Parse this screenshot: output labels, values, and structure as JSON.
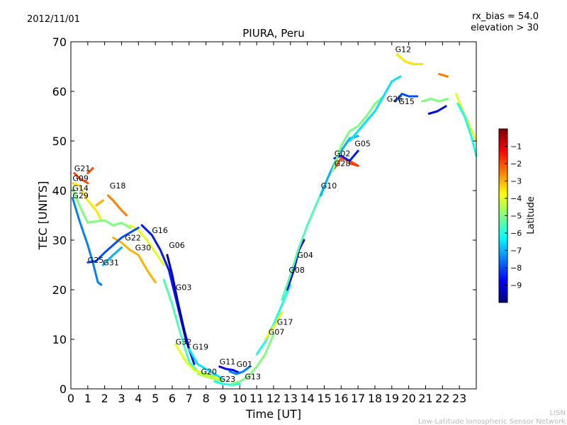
{
  "chart_data": {
    "type": "scatter",
    "date": "2012/11/01",
    "title": "PIURA, Peru",
    "annotations": [
      "rx_bias = 54.0",
      "elevation > 30"
    ],
    "xlabel": "Time [UT]",
    "ylabel": "TEC [UNITS]",
    "xlim": [
      0,
      24
    ],
    "ylim": [
      0,
      70
    ],
    "xticks": [
      "0",
      "1",
      "2",
      "3",
      "4",
      "5",
      "6",
      "7",
      "8",
      "9",
      "10",
      "11",
      "12",
      "13",
      "14",
      "15",
      "16",
      "17",
      "18",
      "19",
      "20",
      "21",
      "22",
      "23"
    ],
    "yticks": [
      "0",
      "10",
      "20",
      "30",
      "40",
      "50",
      "60",
      "70"
    ],
    "colorbar": {
      "label": "Latitude",
      "range": [
        -10,
        0
      ],
      "ticks": [
        "-1",
        "-2",
        "-3",
        "-4",
        "-5",
        "-6",
        "-7",
        "-8",
        "-9"
      ],
      "colors": [
        "#00007f",
        "#0000ff",
        "#007fff",
        "#00ffff",
        "#7fff7f",
        "#ffff00",
        "#ff7f00",
        "#ff0000",
        "#7f0000"
      ]
    },
    "watermark": [
      "LISN",
      "Low-Latitude Ionospheric Sensor Network"
    ],
    "series": [
      {
        "name": "G21",
        "label_at": [
          0.2,
          43.5
        ],
        "points": [
          [
            0.2,
            43.5
          ],
          [
            0.5,
            42.5
          ],
          [
            1.0,
            41.5
          ]
        ],
        "lat": -2.0
      },
      {
        "name": "G09",
        "label_at": [
          0.1,
          41.5
        ],
        "points": [
          [
            0.1,
            41.5
          ],
          [
            0.5,
            41.0
          ],
          [
            1.0,
            38.0
          ],
          [
            1.5,
            36.0
          ],
          [
            1.8,
            34.0
          ]
        ],
        "lat": -3.5
      },
      {
        "name": "G14",
        "label_at": [
          0.1,
          39.5
        ],
        "points": [
          [
            0.1,
            40.5
          ],
          [
            0.5,
            37.0
          ],
          [
            1.0,
            33.5
          ],
          [
            1.5,
            33.8
          ],
          [
            2.0,
            34.0
          ],
          [
            2.5,
            33.0
          ],
          [
            3.0,
            33.5
          ],
          [
            3.5,
            32.5
          ]
        ],
        "lat": -5.0
      },
      {
        "name": "G29",
        "label_at": [
          0.1,
          38.0
        ],
        "points": [
          [
            0.1,
            38.5
          ],
          [
            0.5,
            34.0
          ],
          [
            1.0,
            29.0
          ],
          [
            1.3,
            25.5
          ],
          [
            1.6,
            21.5
          ],
          [
            1.8,
            21.0
          ]
        ],
        "lat": -7.5
      },
      {
        "name": "G18",
        "label_at": [
          2.3,
          40.0
        ],
        "points": [
          [
            2.2,
            39.0
          ],
          [
            2.5,
            38.0
          ],
          [
            3.0,
            36.0
          ],
          [
            3.3,
            35.0
          ]
        ],
        "lat": -2.5
      },
      {
        "name": "G22",
        "label_at": [
          3.2,
          29.5
        ],
        "points": [
          [
            2.5,
            30.5
          ],
          [
            3.0,
            29.5
          ],
          [
            3.5,
            28.0
          ],
          [
            4.0,
            27.0
          ],
          [
            4.5,
            24.0
          ],
          [
            5.0,
            21.5
          ]
        ],
        "lat": -3.0
      },
      {
        "name": "G30",
        "label_at": [
          3.8,
          27.5
        ],
        "points": [
          [
            3.5,
            33.0
          ],
          [
            4.0,
            32.0
          ],
          [
            4.5,
            30.0
          ],
          [
            5.0,
            27.5
          ],
          [
            5.5,
            25.0
          ]
        ],
        "lat": -4.0
      },
      {
        "name": "G25",
        "label_at": [
          1.0,
          25.0
        ],
        "points": [
          [
            1.0,
            25.5
          ],
          [
            1.5,
            25.8
          ],
          [
            2.0,
            27.5
          ],
          [
            2.5,
            29.0
          ],
          [
            3.0,
            30.5
          ],
          [
            3.5,
            31.5
          ],
          [
            4.0,
            32.5
          ]
        ],
        "lat": -8.0
      },
      {
        "name": "G31",
        "label_at": [
          1.9,
          24.5
        ],
        "points": [
          [
            1.9,
            25.0
          ],
          [
            2.5,
            27.0
          ],
          [
            3.0,
            28.5
          ]
        ],
        "lat": -7.0
      },
      {
        "name": "G16",
        "label_at": [
          4.8,
          31.0
        ],
        "points": [
          [
            4.2,
            33.0
          ],
          [
            4.8,
            31.0
          ],
          [
            5.3,
            28.0
          ],
          [
            5.8,
            24.0
          ],
          [
            6.3,
            17.0
          ],
          [
            6.8,
            10.0
          ],
          [
            7.3,
            5.0
          ]
        ],
        "lat": -8.5
      },
      {
        "name": "G06",
        "label_at": [
          5.8,
          28.0
        ],
        "points": [
          [
            5.7,
            27.0
          ],
          [
            6.0,
            23.0
          ],
          [
            6.3,
            18.0
          ],
          [
            6.7,
            12.0
          ],
          [
            7.0,
            8.0
          ]
        ],
        "lat": -9.5
      },
      {
        "name": "G03",
        "label_at": [
          6.2,
          19.5
        ],
        "points": [
          [
            5.5,
            22.0
          ],
          [
            6.0,
            17.0
          ],
          [
            6.5,
            11.0
          ],
          [
            7.0,
            5.5
          ],
          [
            7.5,
            3.5
          ],
          [
            8.0,
            3.0
          ],
          [
            8.5,
            2.5
          ]
        ],
        "lat": -5.5
      },
      {
        "name": "G32",
        "label_at": [
          6.2,
          8.5
        ],
        "points": [
          [
            6.2,
            9.0
          ],
          [
            6.8,
            5.5
          ],
          [
            7.3,
            3.8
          ],
          [
            8.0,
            2.8
          ],
          [
            8.8,
            2.0
          ]
        ],
        "lat": -4.0
      },
      {
        "name": "G19",
        "label_at": [
          7.2,
          7.5
        ],
        "points": [
          [
            7.0,
            8.0
          ],
          [
            7.5,
            5.0
          ],
          [
            8.0,
            4.0
          ],
          [
            8.5,
            3.0
          ],
          [
            9.0,
            2.0
          ]
        ],
        "lat": -6.5
      },
      {
        "name": "G20",
        "label_at": [
          7.7,
          2.5
        ],
        "points": [
          [
            7.5,
            3.0
          ],
          [
            8.0,
            2.5
          ],
          [
            8.5,
            2.0
          ],
          [
            9.0,
            1.5
          ]
        ],
        "lat": -4.5
      },
      {
        "name": "G11",
        "label_at": [
          8.8,
          4.5
        ],
        "points": [
          [
            8.8,
            4.5
          ],
          [
            9.2,
            4.0
          ],
          [
            9.6,
            3.8
          ],
          [
            10.0,
            3.2
          ]
        ],
        "lat": -9.0
      },
      {
        "name": "G01",
        "label_at": [
          9.8,
          4.0
        ],
        "points": [
          [
            9.4,
            3.5
          ],
          [
            9.8,
            3.0
          ],
          [
            10.2,
            3.5
          ],
          [
            10.6,
            4.5
          ]
        ],
        "lat": -7.5
      },
      {
        "name": "G23",
        "label_at": [
          8.8,
          1.0
        ],
        "points": [
          [
            8.5,
            1.5
          ],
          [
            9.0,
            1.0
          ],
          [
            9.5,
            0.8
          ],
          [
            10.0,
            1.0
          ]
        ],
        "lat": -6.0
      },
      {
        "name": "G13",
        "label_at": [
          10.3,
          1.5
        ],
        "points": [
          [
            9.5,
            1.0
          ],
          [
            10.0,
            1.5
          ],
          [
            10.5,
            2.5
          ],
          [
            11.0,
            4.5
          ],
          [
            11.5,
            7.0
          ],
          [
            12.0,
            11.0
          ]
        ],
        "lat": -5.0
      },
      {
        "name": "G17",
        "label_at": [
          12.2,
          12.5
        ],
        "points": [
          [
            11.0,
            7.0
          ],
          [
            11.5,
            9.5
          ],
          [
            12.0,
            13.0
          ],
          [
            12.5,
            17.0
          ],
          [
            13.0,
            21.0
          ]
        ],
        "lat": -6.0
      },
      {
        "name": "G07",
        "label_at": [
          11.7,
          10.5
        ],
        "points": [
          [
            11.5,
            10.0
          ],
          [
            12.0,
            12.5
          ],
          [
            12.5,
            15.5
          ]
        ],
        "lat": -4.0
      },
      {
        "name": "G04",
        "label_at": [
          13.4,
          26.0
        ],
        "points": [
          [
            12.8,
            20.0
          ],
          [
            13.2,
            24.0
          ],
          [
            13.5,
            28.0
          ],
          [
            13.8,
            30.0
          ]
        ],
        "lat": -9.0
      },
      {
        "name": "G08",
        "label_at": [
          12.9,
          23.0
        ],
        "points": [
          [
            12.5,
            18.0
          ],
          [
            13.0,
            23.0
          ],
          [
            13.5,
            28.5
          ],
          [
            14.0,
            33.0
          ],
          [
            14.5,
            37.0
          ],
          [
            15.0,
            41.0
          ]
        ],
        "lat": -5.5
      },
      {
        "name": "G10",
        "label_at": [
          14.8,
          40.0
        ],
        "points": [
          [
            14.8,
            39.0
          ],
          [
            15.2,
            42.5
          ],
          [
            15.6,
            45.5
          ],
          [
            16.0,
            48.0
          ],
          [
            16.5,
            50.5
          ],
          [
            17.0,
            51.0
          ]
        ],
        "lat": -7.0
      },
      {
        "name": "G28",
        "label_at": [
          15.6,
          44.5
        ],
        "points": [
          [
            15.6,
            44.5
          ],
          [
            16.0,
            46.5
          ],
          [
            16.5,
            46.0
          ],
          [
            17.0,
            45.0
          ]
        ],
        "lat": -2.0
      },
      {
        "name": "G02",
        "label_at": [
          15.6,
          46.5
        ],
        "points": [
          [
            15.6,
            46.5
          ],
          [
            16.0,
            47.0
          ],
          [
            16.5,
            46.0
          ],
          [
            17.0,
            48.0
          ]
        ],
        "lat": -8.5
      },
      {
        "name": "G05",
        "label_at": [
          16.8,
          48.5
        ],
        "points": [
          [
            15.5,
            44.0
          ],
          [
            16.0,
            49.0
          ],
          [
            16.5,
            52.0
          ],
          [
            17.0,
            53.0
          ],
          [
            17.5,
            55.0
          ],
          [
            18.0,
            57.5
          ],
          [
            18.5,
            59.0
          ]
        ],
        "lat": -5.0
      },
      {
        "name": "G26",
        "label_at": [
          18.7,
          57.5
        ],
        "points": [
          [
            16.5,
            50.0
          ],
          [
            17.0,
            52.0
          ],
          [
            17.5,
            54.0
          ],
          [
            18.0,
            56.0
          ],
          [
            18.5,
            59.0
          ],
          [
            19.0,
            62.0
          ],
          [
            19.5,
            63.0
          ]
        ],
        "lat": -6.5
      },
      {
        "name": "G15",
        "label_at": [
          19.4,
          57.0
        ],
        "points": [
          [
            19.2,
            58.0
          ],
          [
            19.6,
            59.5
          ],
          [
            20.0,
            59.0
          ],
          [
            20.5,
            59.0
          ]
        ],
        "lat": -8.0
      },
      {
        "name": "G12",
        "label_at": [
          19.2,
          67.5
        ],
        "points": [
          [
            19.3,
            67.5
          ],
          [
            19.8,
            66.0
          ],
          [
            20.3,
            65.5
          ],
          [
            20.8,
            65.5
          ]
        ],
        "lat": -3.5
      },
      {
        "name": "",
        "label_at": null,
        "points": [
          [
            20.8,
            58.0
          ],
          [
            21.3,
            58.5
          ],
          [
            21.8,
            58.0
          ],
          [
            22.3,
            58.5
          ]
        ],
        "lat": -5.0
      },
      {
        "name": "",
        "label_at": null,
        "points": [
          [
            21.2,
            55.5
          ],
          [
            21.7,
            56.0
          ],
          [
            22.2,
            57.0
          ]
        ],
        "lat": -9.0
      },
      {
        "name": "",
        "label_at": null,
        "points": [
          [
            21.8,
            63.5
          ],
          [
            22.3,
            63.0
          ]
        ],
        "lat": -2.5
      },
      {
        "name": "",
        "label_at": null,
        "points": [
          [
            22.8,
            59.5
          ],
          [
            23.2,
            56.0
          ],
          [
            23.6,
            53.0
          ],
          [
            24.0,
            50.0
          ]
        ],
        "lat": -4.0
      },
      {
        "name": "",
        "label_at": null,
        "points": [
          [
            22.9,
            57.5
          ],
          [
            23.3,
            55.0
          ],
          [
            23.7,
            51.0
          ],
          [
            24.0,
            47.0
          ]
        ],
        "lat": -6.0
      },
      {
        "name": "",
        "label_at": null,
        "points": [
          [
            1.0,
            43.5
          ],
          [
            1.3,
            44.5
          ]
        ],
        "lat": -2.0
      },
      {
        "name": "",
        "label_at": null,
        "points": [
          [
            1.5,
            37.0
          ],
          [
            1.9,
            38.0
          ]
        ],
        "lat": -3.0
      },
      {
        "name": "",
        "label_at": null,
        "points": [
          [
            16.5,
            45.5
          ],
          [
            17.0,
            45.0
          ]
        ],
        "lat": -1.8
      }
    ]
  }
}
